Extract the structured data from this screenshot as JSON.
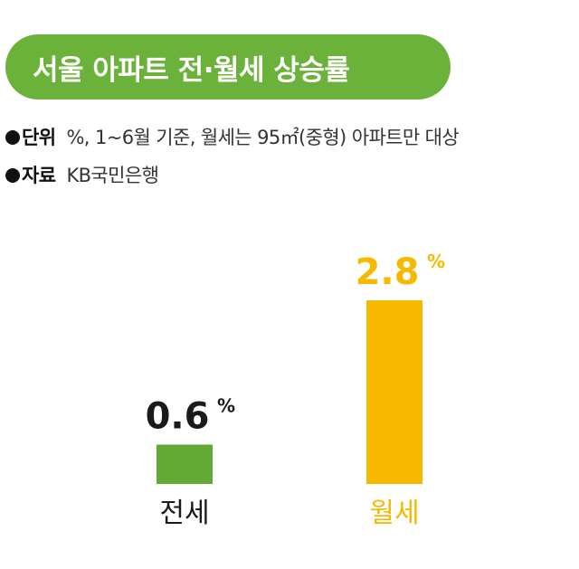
{
  "header": {
    "title": "서울 아파트 전·월세 상승률"
  },
  "meta": {
    "unit_key": "단위",
    "unit_value": "%, 1~6월 기준, 월세는 95㎡(중형) 아파트만 대상",
    "source_key": "자료",
    "source_value": "KB국민은행"
  },
  "colors": {
    "title_bg": "#6bb23a",
    "jeonse": "#62a935",
    "wolse": "#f7b900",
    "value_text": "#1a1a1a"
  },
  "chart_data": {
    "type": "bar",
    "title": "서울 아파트 전·월세 상승률",
    "categories": [
      "전세",
      "월세"
    ],
    "values": [
      0.6,
      2.8
    ],
    "value_labels": [
      "0.6",
      "2.8"
    ],
    "unit": "%",
    "ylim": [
      0,
      2.8
    ],
    "grid": false,
    "legend": "none"
  }
}
